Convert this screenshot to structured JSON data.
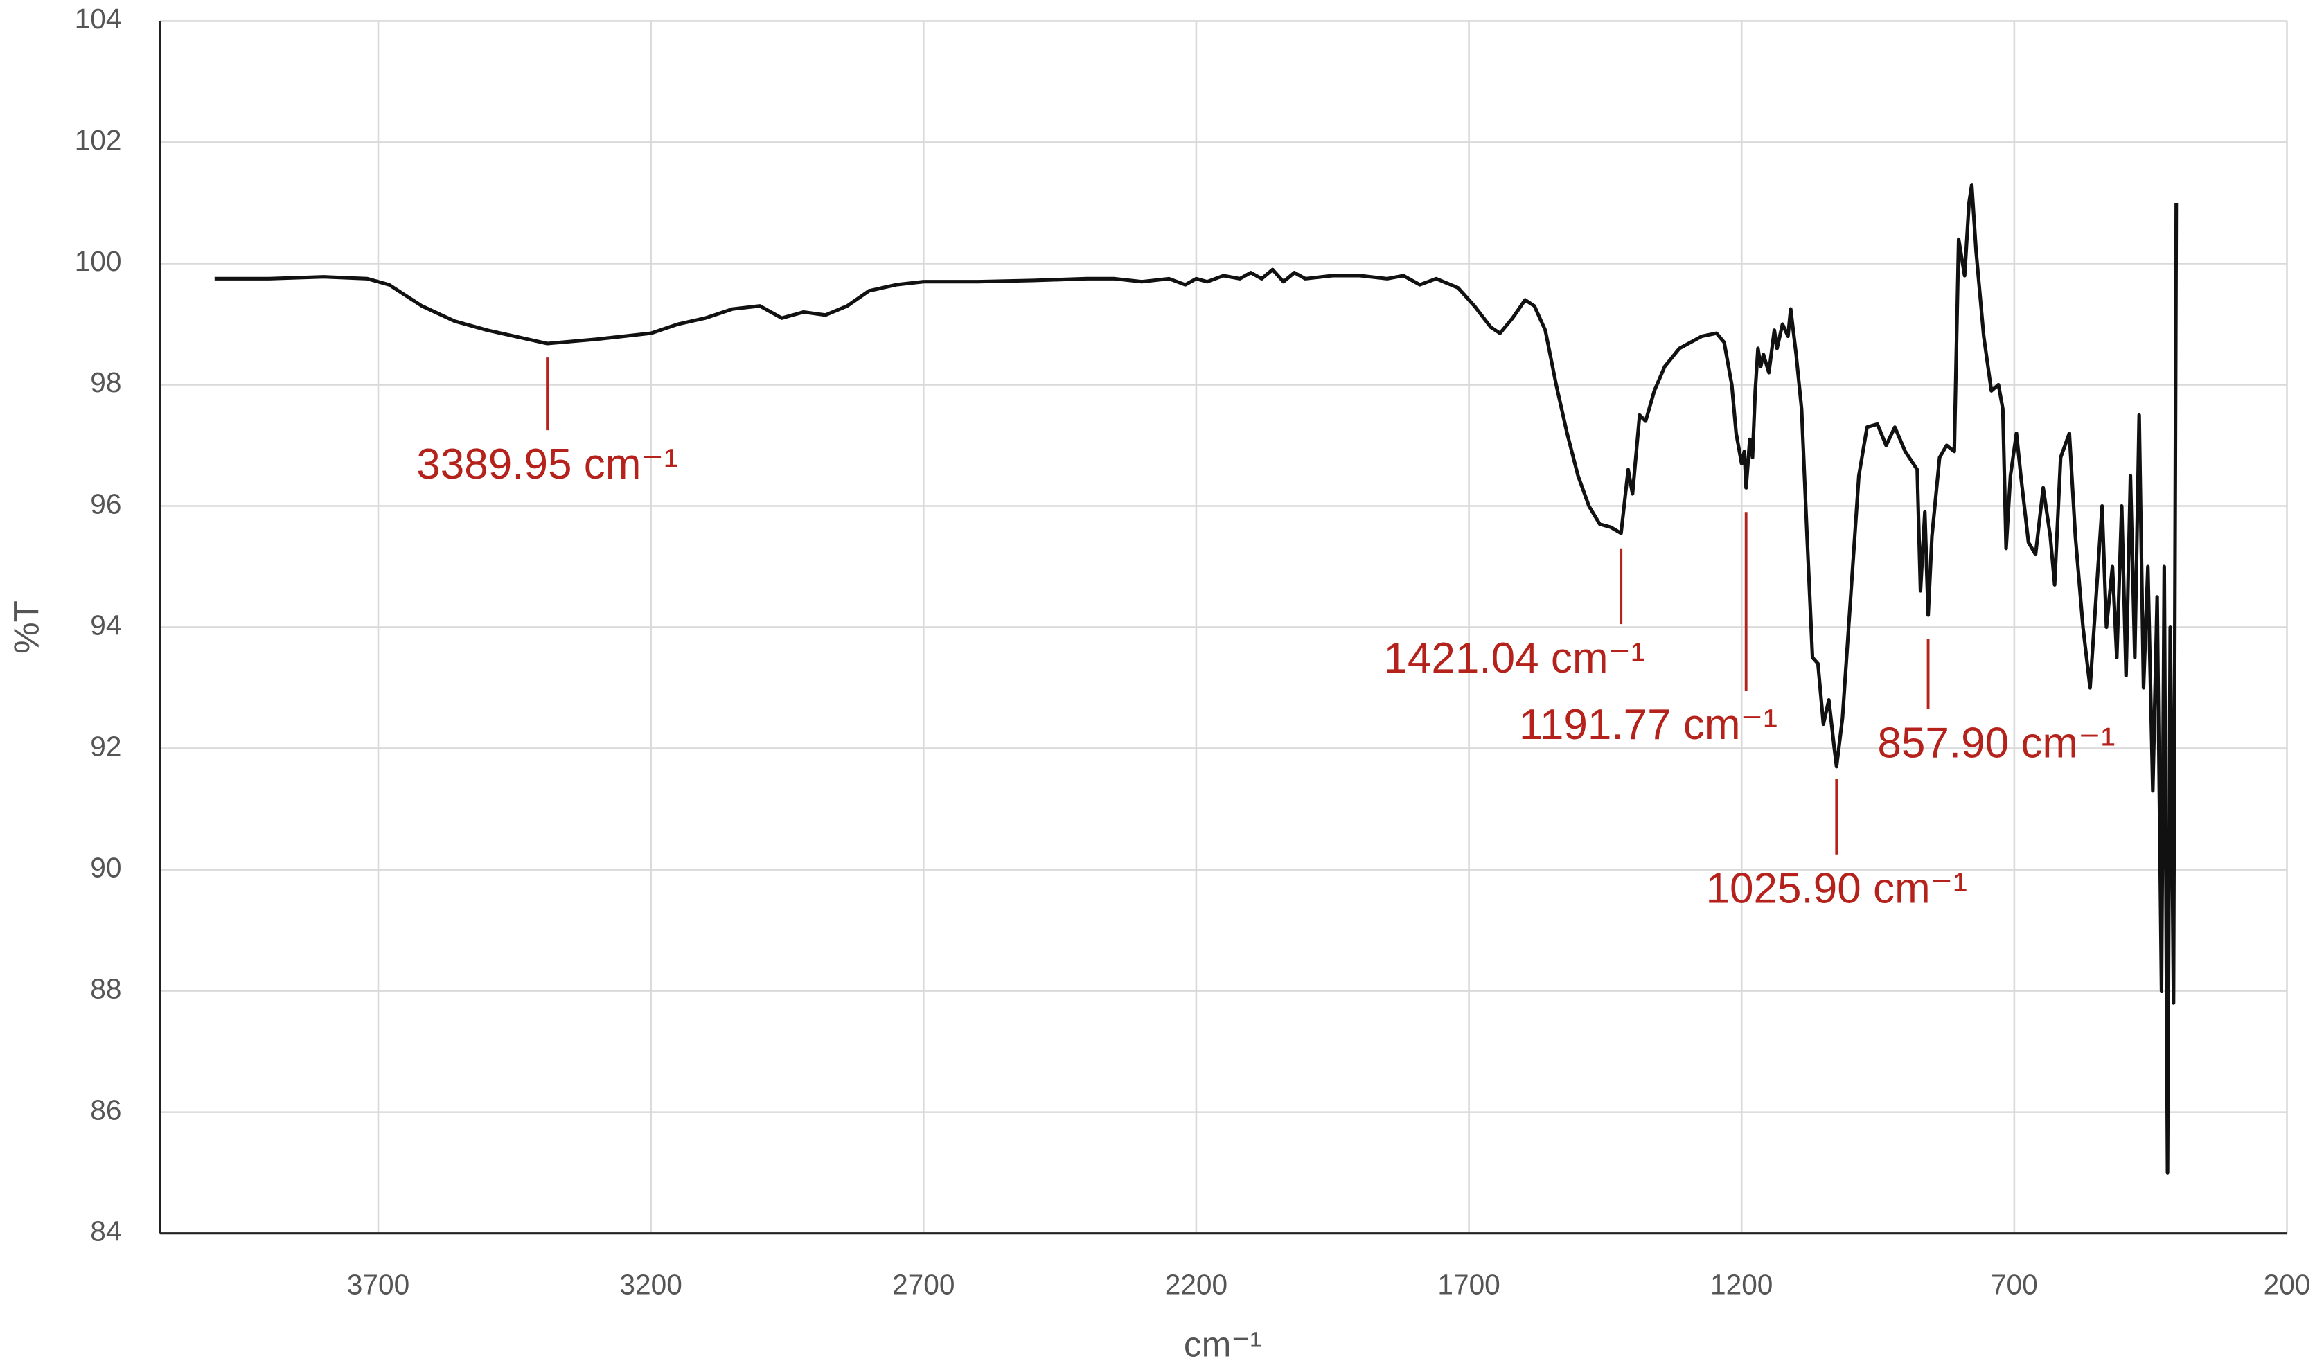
{
  "chart_data": {
    "type": "line",
    "x_label": "cm⁻¹",
    "y_label": "%T",
    "xlim": [
      4100,
      200
    ],
    "xticks": [
      3700,
      3200,
      2700,
      2200,
      1700,
      1200,
      700,
      200
    ],
    "ylim": [
      84,
      104
    ],
    "yticks": [
      84,
      86,
      88,
      90,
      92,
      94,
      96,
      98,
      100,
      102,
      104
    ],
    "grid": true,
    "color": "#111111",
    "x": [
      4000,
      3900,
      3800,
      3720,
      3680,
      3620,
      3560,
      3500,
      3440,
      3389.95,
      3300,
      3200,
      3150,
      3100,
      3050,
      3000,
      2960,
      2920,
      2880,
      2840,
      2800,
      2750,
      2700,
      2600,
      2500,
      2400,
      2350,
      2300,
      2250,
      2220,
      2200,
      2180,
      2150,
      2120,
      2100,
      2080,
      2060,
      2040,
      2020,
      2000,
      1950,
      1900,
      1850,
      1820,
      1790,
      1760,
      1720,
      1690,
      1660,
      1643,
      1620,
      1597,
      1580,
      1560,
      1540,
      1520,
      1500,
      1480,
      1460,
      1440,
      1421.04,
      1408,
      1400,
      1387,
      1376,
      1360,
      1341,
      1314,
      1273,
      1246,
      1232,
      1218,
      1210,
      1200,
      1195,
      1191.77,
      1185,
      1180,
      1175,
      1170,
      1165,
      1160,
      1150,
      1140,
      1135,
      1125,
      1115,
      1110,
      1100,
      1090,
      1080,
      1070,
      1060,
      1050,
      1040,
      1030,
      1025.9,
      1015,
      1000,
      985,
      970,
      951,
      935,
      919,
      900,
      878,
      872,
      864,
      857.9,
      851,
      837,
      824,
      810,
      802,
      791,
      783,
      778,
      770,
      756,
      742,
      729,
      721,
      715,
      707,
      696,
      688,
      674,
      661,
      647,
      634,
      626,
      615,
      599,
      588,
      574,
      561,
      550,
      539,
      531,
      520,
      512,
      503,
      495,
      487,
      479,
      471,
      463,
      455,
      446,
      438,
      430,
      425,
      419,
      414,
      408,
      403
    ],
    "values": [
      99.75,
      99.75,
      99.78,
      99.75,
      99.65,
      99.3,
      99.05,
      98.9,
      98.78,
      98.68,
      98.75,
      98.85,
      99.0,
      99.1,
      99.25,
      99.3,
      99.1,
      99.2,
      99.15,
      99.3,
      99.55,
      99.65,
      99.7,
      99.7,
      99.72,
      99.75,
      99.75,
      99.7,
      99.75,
      99.65,
      99.75,
      99.7,
      99.8,
      99.75,
      99.85,
      99.75,
      99.9,
      99.7,
      99.85,
      99.75,
      99.8,
      99.8,
      99.75,
      99.8,
      99.65,
      99.75,
      99.6,
      99.3,
      98.95,
      98.85,
      99.1,
      99.4,
      99.3,
      98.9,
      98.0,
      97.2,
      96.5,
      96.0,
      95.7,
      95.65,
      95.55,
      96.6,
      96.2,
      97.5,
      97.4,
      97.9,
      98.3,
      98.6,
      98.8,
      98.85,
      98.7,
      98.0,
      97.2,
      96.7,
      96.9,
      96.3,
      97.1,
      96.8,
      97.9,
      98.6,
      98.3,
      98.5,
      98.2,
      98.9,
      98.6,
      99.0,
      98.8,
      99.25,
      98.5,
      97.6,
      95.5,
      93.5,
      93.4,
      92.4,
      92.8,
      92.0,
      91.7,
      92.5,
      94.5,
      96.5,
      97.3,
      97.35,
      97.0,
      97.3,
      96.9,
      96.6,
      94.6,
      95.9,
      94.2,
      95.5,
      96.8,
      97.0,
      96.9,
      100.4,
      99.8,
      101.0,
      101.3,
      100.2,
      98.8,
      97.9,
      98.0,
      97.6,
      95.3,
      96.5,
      97.2,
      96.5,
      95.4,
      95.2,
      96.3,
      95.5,
      94.7,
      96.8,
      97.2,
      95.5,
      94.0,
      93.0,
      94.5,
      96.0,
      94.0,
      95.0,
      93.5,
      96.0,
      93.2,
      96.5,
      93.5,
      97.5,
      93.0,
      95.0,
      91.3,
      94.5,
      88.0,
      95.0,
      85.0,
      94.0,
      87.8,
      101.0
    ],
    "annotations": [
      {
        "text": "3389.95 cm⁻¹",
        "x": 3389.95,
        "line": [
          98.45,
          97.25
        ]
      },
      {
        "text": "1421.04 cm⁻¹",
        "x": 1421.04,
        "line": [
          95.3,
          94.05
        ]
      },
      {
        "text": "1191.77 cm⁻¹",
        "x": 1191.77,
        "line": [
          95.9,
          92.95
        ]
      },
      {
        "text": "1025.90 cm⁻¹",
        "x": 1025.9,
        "line": [
          91.5,
          90.25
        ]
      },
      {
        "text": "857.90 cm⁻¹",
        "x": 857.9,
        "line": [
          93.8,
          92.65
        ]
      }
    ],
    "annotation_color": "#b5221c"
  }
}
